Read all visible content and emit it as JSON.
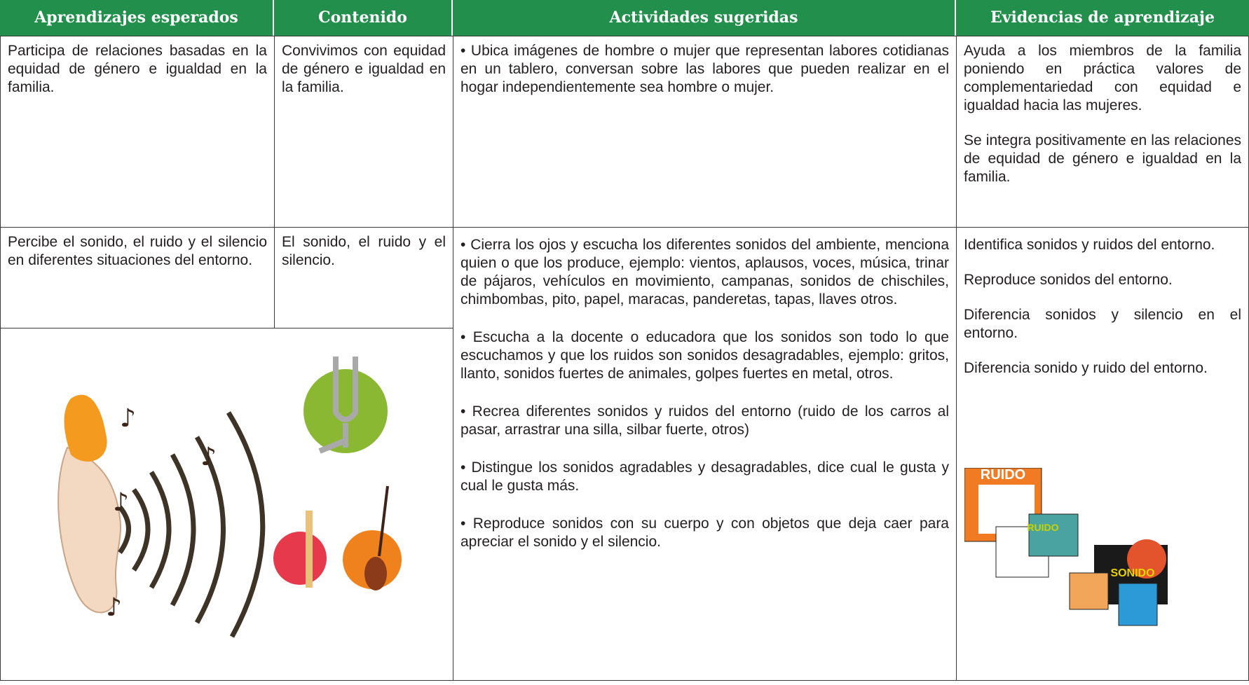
{
  "table": {
    "headers": [
      "Aprendizajes esperados",
      "Contenido",
      "Actividades sugeridas",
      "Evidencias de aprendizaje"
    ],
    "rows": [
      {
        "aprendizajes": [
          "Participa de relaciones basadas en la equidad de género e igualdad en la familia."
        ],
        "contenido": [
          "Convivimos con equidad de género e igualdad en la familia."
        ],
        "actividades": [
          "• Ubica imágenes de hombre o mujer que representan labores cotidianas en un tablero, conversan sobre las labores que pueden realizar en el hogar independientemente sea hombre o mujer."
        ],
        "evidencias": [
          "Ayuda a los miembros de la familia poniendo en práctica valores de complementariedad con equidad e igualdad hacia las mujeres.",
          "Se integra positivamente en las relaciones de equidad de género e igualdad en la familia."
        ]
      },
      {
        "aprendizajes": [
          "Percibe el sonido, el ruido y el silencio en diferentes situaciones del entorno."
        ],
        "contenido": [
          "El sonido,  el ruido y el silencio."
        ],
        "actividades": [
          "• Cierra los ojos y escucha los diferentes sonidos del ambiente, menciona quien o que los produce, ejemplo: vientos, aplausos, voces, música, trinar de pájaros, vehículos en movimiento, campanas, sonidos de chischiles, chimbombas, pito, papel, maracas, panderetas, tapas, llaves otros.",
          "• Escucha a la docente o educadora que los sonidos son todo  lo  que escuchamos y que los ruidos son sonidos desagradables, ejemplo: gritos, llanto, sonidos fuertes de animales, golpes fuertes en metal, otros.",
          "• Recrea diferentes sonidos y ruidos del entorno (ruido de los carros al pasar, arrastrar una silla, silbar fuerte, otros)",
          "• Distingue los sonidos agradables y desagradables, dice cual le gusta y cual le gusta más.",
          "• Reproduce sonidos con su cuerpo y con objetos que deja caer para apreciar el sonido y el silencio."
        ],
        "evidencias": [
          "Identifica sonidos y ruidos del entorno.",
          "Reproduce sonidos del entorno.",
          "Diferencia sonidos y silencio en el entorno.",
          "Diferencia sonido y ruido del entorno."
        ]
      }
    ]
  },
  "images": {
    "labels": [
      "RUIDO",
      "RUIDO",
      "SONIDO"
    ]
  }
}
